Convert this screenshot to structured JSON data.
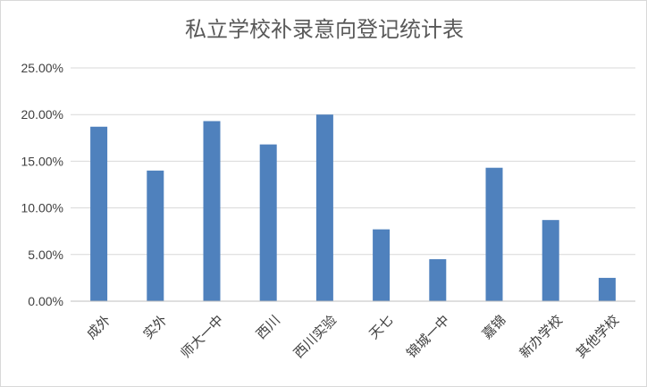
{
  "chart_data": {
    "type": "bar",
    "title": "私立学校补录意向登记统计表",
    "categories": [
      "成外",
      "实外",
      "师大一中",
      "西川",
      "西川实验",
      "天七",
      "锦城一中",
      "嘉锦",
      "新办学校",
      "其他学校"
    ],
    "series": [
      {
        "values": [
          18.7,
          14.0,
          19.3,
          16.8,
          20.0,
          7.7,
          4.5,
          14.3,
          8.7,
          2.5
        ]
      }
    ],
    "ylim": [
      0,
      25
    ],
    "yticks": [
      0,
      5,
      10,
      15,
      20,
      25
    ],
    "ytick_labels": [
      "0.00%",
      "5.00%",
      "10.00%",
      "15.00%",
      "20.00%",
      "25.00%"
    ],
    "grid": true,
    "legend": "none",
    "bar_color": "#4f81bd"
  }
}
